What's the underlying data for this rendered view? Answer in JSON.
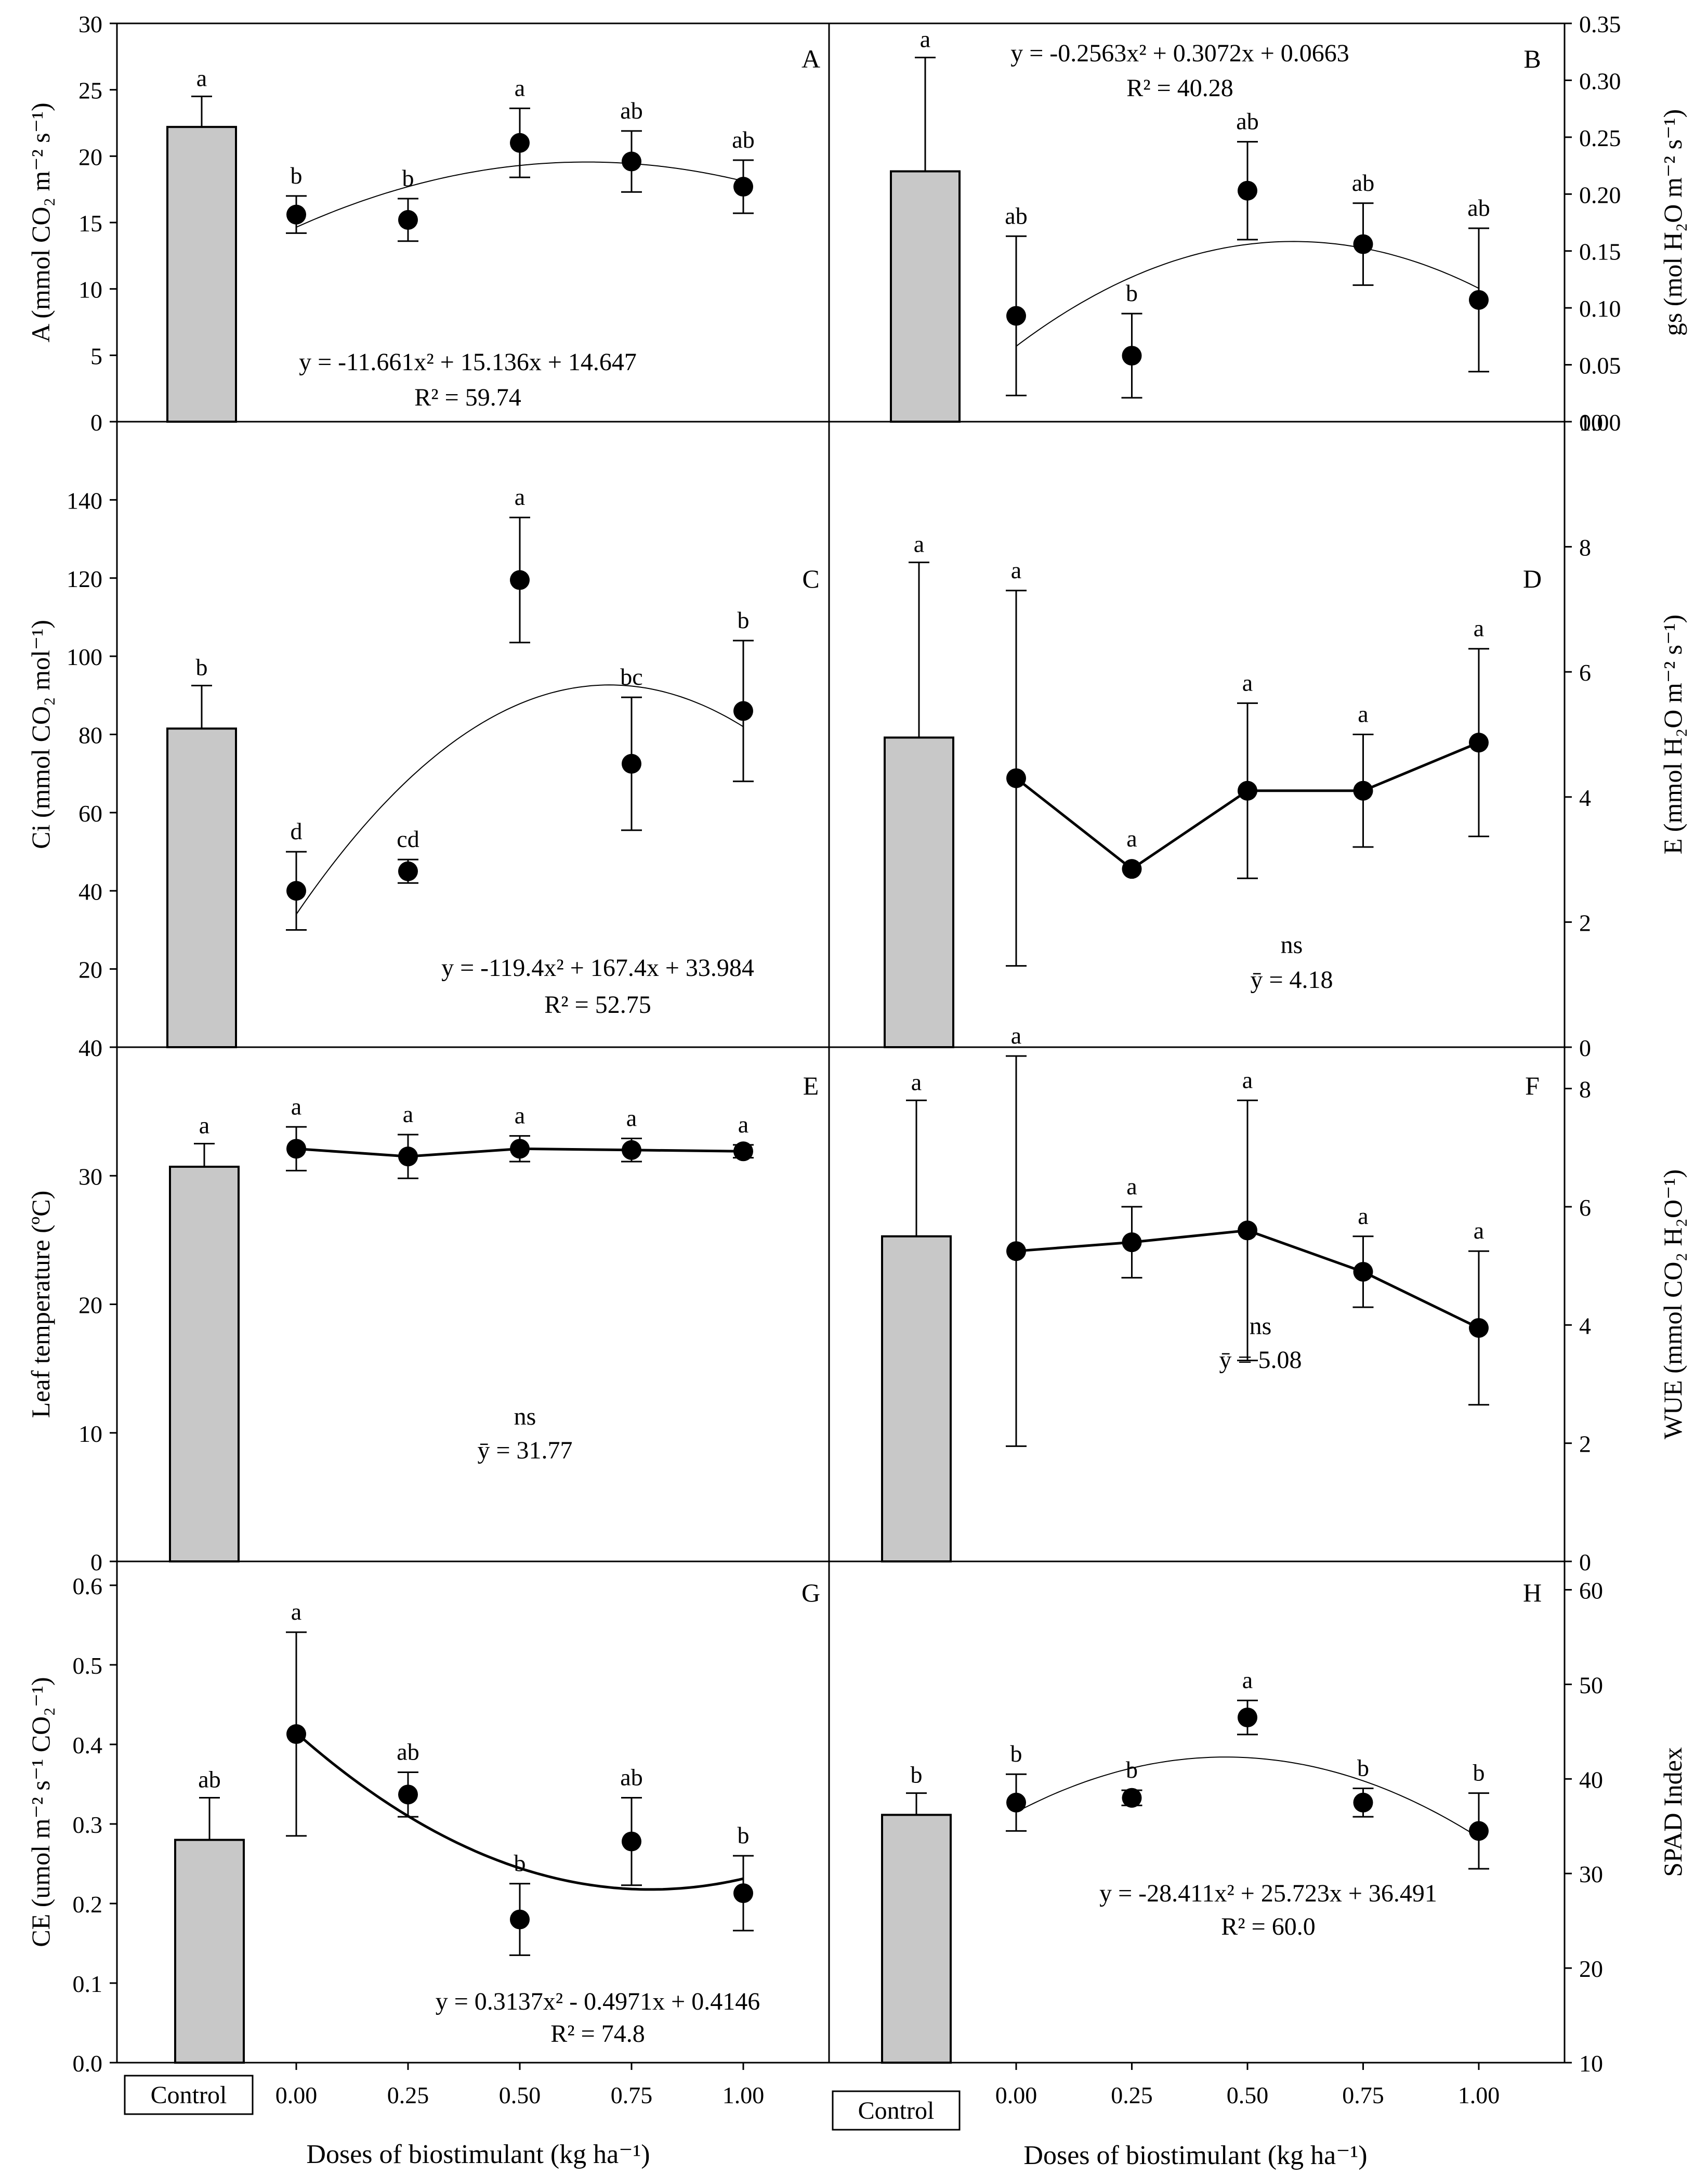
{
  "figure": {
    "xaxis_label_left": "Doses of biostimulant (kg ha⁻¹)",
    "xaxis_label_right": "Doses of biostimulant (kg ha⁻¹)",
    "control_label": "Control",
    "x_tick_labels": [
      "0.00",
      "0.25",
      "0.50",
      "0.75",
      "1.00"
    ]
  },
  "chart_data": [
    {
      "id": "A",
      "panel_letter": "A",
      "type": "bar+scatter",
      "side": "left",
      "ylabel": "A (mmol CO₂ m⁻² s⁻¹)",
      "ylim": [
        0,
        30
      ],
      "yticks": [
        "0",
        "5",
        "10",
        "15",
        "20",
        "25",
        "30"
      ],
      "x": [
        0,
        0.25,
        0.5,
        0.75,
        1.0
      ],
      "values": [
        15.6,
        15.2,
        21.0,
        19.6,
        17.7
      ],
      "errors": [
        1.4,
        1.6,
        2.6,
        2.3,
        2.0
      ],
      "letters": [
        "b",
        "b",
        "a",
        "ab",
        "ab"
      ],
      "control": {
        "value": 22.2,
        "error": 2.3,
        "letter": "a"
      },
      "fit": {
        "kind": "quadratic",
        "coef": [
          -11.661,
          15.136,
          14.647
        ],
        "style": "thin"
      },
      "equation": "y = -11.661x² + 15.136x + 14.647",
      "r2": "R² = 59.74"
    },
    {
      "id": "B",
      "panel_letter": "B",
      "type": "bar+scatter",
      "side": "right",
      "ylabel": "gs (mol H₂O m⁻² s⁻¹)",
      "ylim": [
        0,
        0.35
      ],
      "yticks": [
        "0.00",
        "0.05",
        "0.10",
        "0.15",
        "0.20",
        "0.25",
        "0.30",
        "0.35"
      ],
      "x": [
        0,
        0.25,
        0.5,
        0.75,
        1.0
      ],
      "values": [
        0.093,
        0.058,
        0.203,
        0.156,
        0.107
      ],
      "errors": [
        0.07,
        0.037,
        0.043,
        0.036,
        0.063
      ],
      "letters": [
        "ab",
        "b",
        "ab",
        "ab",
        "ab"
      ],
      "control": {
        "value": 0.22,
        "error": 0.1,
        "letter": "a"
      },
      "fit": {
        "kind": "quadratic",
        "coef": [
          -0.2563,
          0.3072,
          0.0663
        ],
        "style": "thin"
      },
      "equation": "y = -0.2563x² + 0.3072x + 0.0663",
      "r2": "R² = 40.28"
    },
    {
      "id": "C",
      "panel_letter": "C",
      "type": "bar+scatter",
      "side": "left",
      "ylabel": "Ci (mmol CO₂ mol⁻¹)",
      "ylim": [
        0,
        160
      ],
      "yticks": [
        "0",
        "20",
        "40",
        "60",
        "80",
        "100",
        "120",
        "140"
      ],
      "x": [
        0,
        0.25,
        0.5,
        0.75,
        1.0
      ],
      "values": [
        40,
        45,
        119.5,
        72.5,
        86
      ],
      "errors": [
        10,
        3,
        16,
        17,
        18
      ],
      "letters": [
        "d",
        "cd",
        "a",
        "bc",
        "b"
      ],
      "control": {
        "value": 81.5,
        "error": 11,
        "letter": "b"
      },
      "fit": {
        "kind": "quadratic",
        "coef": [
          -119.4,
          167.4,
          33.984
        ],
        "style": "thin"
      },
      "equation": "y = -119.4x² + 167.4x + 33.984",
      "r2": "R² = 52.75"
    },
    {
      "id": "D",
      "panel_letter": "D",
      "type": "bar+scatter",
      "side": "right",
      "ylabel": "E (mmol H₂O m⁻² s⁻¹)",
      "ylim": [
        0,
        10
      ],
      "yticks": [
        "0",
        "2",
        "4",
        "6",
        "8",
        "10"
      ],
      "x": [
        0,
        0.25,
        0.5,
        0.75,
        1.0
      ],
      "values": [
        4.3,
        2.85,
        4.1,
        4.1,
        4.87
      ],
      "errors": [
        3.0,
        0.0,
        1.4,
        0.9,
        1.5
      ],
      "letters": [
        "a",
        "a",
        "a",
        "a",
        "a"
      ],
      "control": {
        "value": 4.95,
        "error": 2.8,
        "letter": "a"
      },
      "fit": {
        "kind": "connect",
        "style": "thick"
      },
      "ns": "ns",
      "mean": "ȳ = 4.18"
    },
    {
      "id": "E",
      "panel_letter": "E",
      "type": "bar+scatter",
      "side": "left",
      "ylabel": "Leaf temperature (ºC)",
      "ylim": [
        0,
        40
      ],
      "yticks": [
        "0",
        "10",
        "20",
        "30",
        "40"
      ],
      "x": [
        0,
        0.25,
        0.5,
        0.75,
        1.0
      ],
      "values": [
        32.1,
        31.5,
        32.1,
        32.0,
        31.9
      ],
      "errors": [
        1.7,
        1.7,
        1.0,
        0.9,
        0.5
      ],
      "letters": [
        "a",
        "a",
        "a",
        "a",
        "a"
      ],
      "control": {
        "value": 30.7,
        "error": 1.8,
        "letter": "a"
      },
      "fit": {
        "kind": "connect",
        "style": "thick"
      },
      "ns": "ns",
      "mean": "ȳ = 31.77"
    },
    {
      "id": "F",
      "panel_letter": "F",
      "type": "bar+scatter",
      "side": "right",
      "ylabel": "WUE (mmol CO₂ H₂O⁻¹)",
      "ylim": [
        0,
        8.7
      ],
      "yticks": [
        "0",
        "2",
        "4",
        "6",
        "8"
      ],
      "x": [
        0,
        0.25,
        0.5,
        0.75,
        1.0
      ],
      "values": [
        5.25,
        5.4,
        5.6,
        4.9,
        3.95
      ],
      "errors": [
        3.3,
        0.6,
        2.2,
        0.6,
        1.3
      ],
      "letters": [
        "a",
        "a",
        "a",
        "a",
        "a"
      ],
      "control": {
        "value": 5.5,
        "error": 2.3,
        "letter": "a"
      },
      "fit": {
        "kind": "connect",
        "style": "thick"
      },
      "ns": "ns",
      "mean": "ȳ = 5.08"
    },
    {
      "id": "G",
      "panel_letter": "G",
      "type": "bar+scatter",
      "side": "left",
      "ylabel": "CE (umol m⁻² s⁻¹ CO₂⁻¹)",
      "ylim": [
        0,
        0.63
      ],
      "yticks": [
        "0.0",
        "0.1",
        "0.2",
        "0.3",
        "0.4",
        "0.5",
        "0.6"
      ],
      "x": [
        0,
        0.25,
        0.5,
        0.75,
        1.0
      ],
      "values": [
        0.413,
        0.337,
        0.18,
        0.278,
        0.213
      ],
      "errors": [
        0.128,
        0.028,
        0.045,
        0.055,
        0.047
      ],
      "letters": [
        "a",
        "ab",
        "b",
        "ab",
        "b"
      ],
      "control": {
        "value": 0.28,
        "error": 0.053,
        "letter": "ab"
      },
      "fit": {
        "kind": "quadratic",
        "coef": [
          0.3137,
          -0.4971,
          0.4146
        ],
        "style": "thick"
      },
      "equation": "y = 0.3137x² - 0.4971x + 0.4146",
      "r2": "R² = 74.8"
    },
    {
      "id": "H",
      "panel_letter": "H",
      "type": "bar+scatter",
      "side": "right",
      "ylabel": "SPAD Index",
      "ylim": [
        10,
        63
      ],
      "yticks": [
        "10",
        "20",
        "30",
        "40",
        "50",
        "60"
      ],
      "x": [
        0,
        0.25,
        0.5,
        0.75,
        1.0
      ],
      "values": [
        37.5,
        38.0,
        46.5,
        37.5,
        34.5
      ],
      "errors": [
        3.0,
        0.8,
        1.8,
        1.5,
        4.0
      ],
      "letters": [
        "b",
        "b",
        "a",
        "b",
        "b"
      ],
      "control": {
        "value": 36.2,
        "error": 2.3,
        "letter": "b"
      },
      "fit": {
        "kind": "quadratic",
        "coef": [
          -28.411,
          25.723,
          36.491
        ],
        "style": "thin"
      },
      "equation": "y = -28.411x² + 25.723x + 36.491",
      "r2": "R² = 60.0"
    }
  ]
}
